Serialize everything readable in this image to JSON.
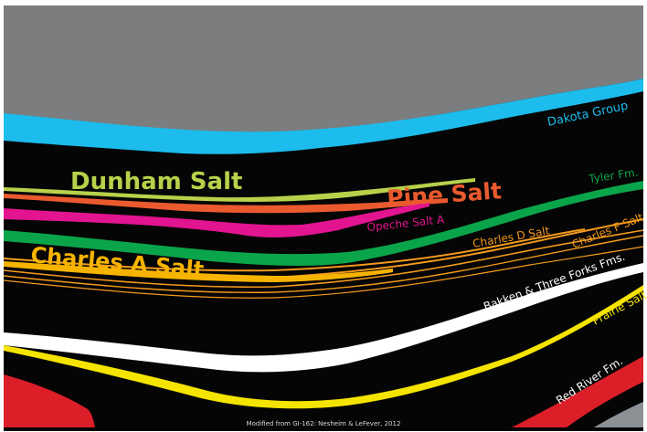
{
  "labels": {
    "dakota_group": "Dakota Group",
    "dunham_salt": "Dunham Salt",
    "pine_salt": "Pine Salt",
    "opeche_salt_a": "Opeche Salt A",
    "tyler_fm": "Tyler Fm.",
    "charles_a_salt": "Charles A Salt",
    "charles_d_salt": "Charles D Salt",
    "charles_f_salt": "Charles F Salt",
    "bakken_three_forks": "Bakken & Three Forks Fms.",
    "prairie_salt": "Prairie Salt",
    "red_river_fm": "Red River Fm."
  },
  "credit": "Modified from GI-162: Nesheim & LeFever, 2012",
  "colors": {
    "overburden": "#7b7d7f",
    "basement": "#8c9196",
    "strata": "#050505",
    "dakota": "#1cbcec",
    "dunham": "#b7d24a",
    "pine": "#ea5a2e",
    "opeche": "#e2148f",
    "tyler": "#0aa54a",
    "charles": "#f39a1c",
    "charles_a": "#f6b400",
    "bakken": "#ffffff",
    "prairie": "#f5e400",
    "red_river": "#dc1e28"
  }
}
